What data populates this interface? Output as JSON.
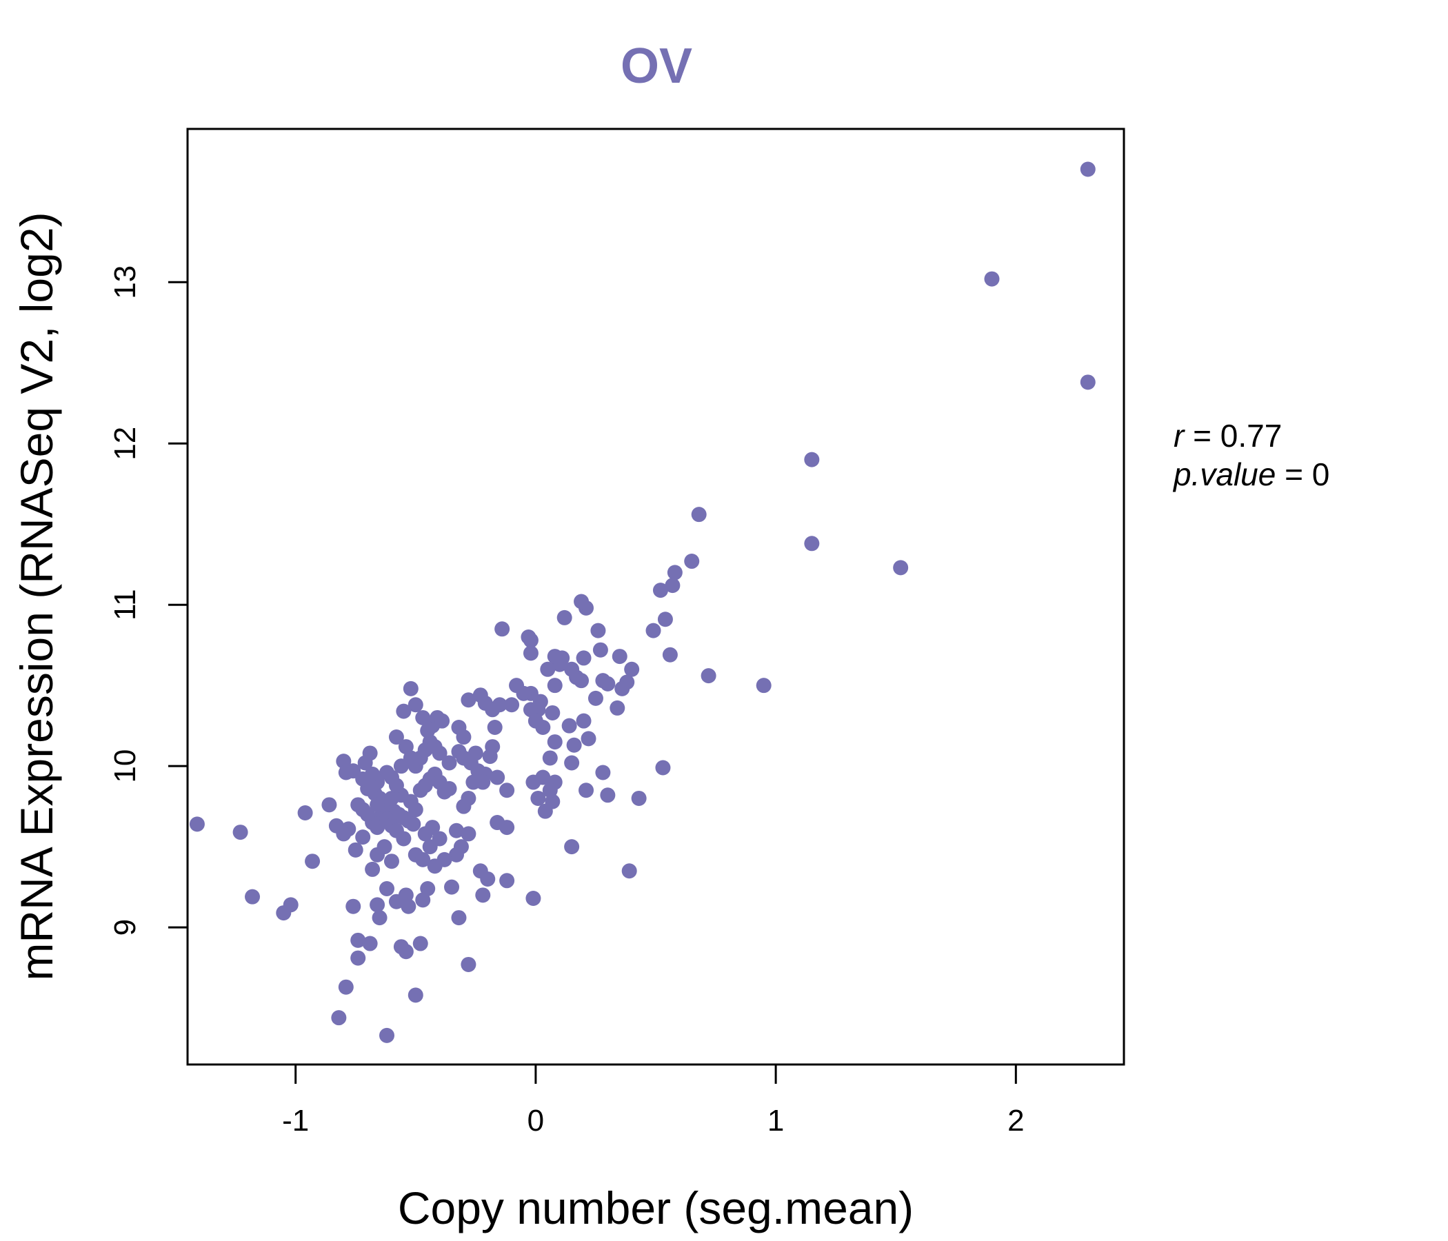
{
  "chart_data": {
    "type": "scatter",
    "title": "OV",
    "xlabel": "Copy number (seg.mean)",
    "ylabel": "mRNA Expression (RNASeq V2, log2)",
    "xlim": [
      -1.45,
      2.45
    ],
    "ylim": [
      8.15,
      13.95
    ],
    "xticks": [
      -1,
      0,
      1,
      2
    ],
    "yticks": [
      9,
      10,
      11,
      12,
      13
    ],
    "xtick_labels": [
      "-1",
      "0",
      "1",
      "2"
    ],
    "ytick_labels": [
      "9",
      "10",
      "11",
      "12",
      "13"
    ],
    "point_color": "#7570b3",
    "stats": {
      "r_label": "r",
      "r_value": "0.77",
      "p_label": "p.value",
      "p_value": "0"
    },
    "points": [
      [
        2.3,
        13.7
      ],
      [
        1.9,
        13.02
      ],
      [
        2.3,
        12.38
      ],
      [
        1.15,
        11.9
      ],
      [
        1.15,
        11.38
      ],
      [
        1.52,
        11.23
      ],
      [
        0.68,
        11.56
      ],
      [
        0.65,
        11.27
      ],
      [
        0.58,
        11.2
      ],
      [
        0.57,
        11.12
      ],
      [
        0.52,
        11.09
      ],
      [
        0.54,
        10.91
      ],
      [
        0.49,
        10.84
      ],
      [
        0.56,
        10.69
      ],
      [
        0.72,
        10.56
      ],
      [
        0.95,
        10.5
      ],
      [
        0.53,
        9.99
      ],
      [
        0.43,
        9.8
      ],
      [
        0.39,
        9.35
      ],
      [
        0.4,
        10.6
      ],
      [
        0.38,
        10.52
      ],
      [
        0.35,
        10.68
      ],
      [
        0.36,
        10.48
      ],
      [
        0.34,
        10.36
      ],
      [
        0.3,
        10.51
      ],
      [
        0.28,
        10.53
      ],
      [
        0.27,
        10.72
      ],
      [
        0.26,
        10.84
      ],
      [
        0.25,
        10.42
      ],
      [
        0.28,
        9.96
      ],
      [
        0.3,
        9.82
      ],
      [
        0.22,
        10.17
      ],
      [
        0.21,
        10.98
      ],
      [
        0.19,
        11.02
      ],
      [
        0.2,
        10.67
      ],
      [
        0.2,
        10.28
      ],
      [
        0.21,
        9.85
      ],
      [
        0.19,
        10.53
      ],
      [
        0.17,
        10.55
      ],
      [
        0.15,
        10.6
      ],
      [
        0.14,
        10.25
      ],
      [
        0.16,
        10.13
      ],
      [
        0.15,
        10.02
      ],
      [
        0.15,
        9.5
      ],
      [
        0.12,
        10.92
      ],
      [
        0.11,
        10.67
      ],
      [
        0.1,
        10.63
      ],
      [
        0.08,
        10.68
      ],
      [
        0.05,
        10.6
      ],
      [
        0.08,
        10.5
      ],
      [
        0.07,
        10.33
      ],
      [
        0.08,
        10.15
      ],
      [
        0.06,
        10.05
      ],
      [
        0.03,
        10.24
      ],
      [
        0.01,
        10.35
      ],
      [
        -0.02,
        10.78
      ],
      [
        -0.03,
        10.8
      ],
      [
        -0.02,
        10.7
      ],
      [
        -0.02,
        10.45
      ],
      [
        -0.02,
        10.35
      ],
      [
        0.0,
        10.28
      ],
      [
        0.02,
        10.4
      ],
      [
        -0.05,
        10.45
      ],
      [
        -0.08,
        10.5
      ],
      [
        -0.1,
        10.38
      ],
      [
        -0.14,
        10.85
      ],
      [
        -0.15,
        10.38
      ],
      [
        -0.18,
        10.35
      ],
      [
        -0.17,
        10.24
      ],
      [
        -0.18,
        10.12
      ],
      [
        -0.19,
        10.06
      ],
      [
        -0.21,
        10.39
      ],
      [
        -0.23,
        10.44
      ],
      [
        -0.25,
        10.08
      ],
      [
        -0.28,
        10.41
      ],
      [
        -0.3,
        10.18
      ],
      [
        -0.32,
        10.24
      ],
      [
        -0.32,
        10.09
      ],
      [
        -0.3,
        10.05
      ],
      [
        -0.27,
        10.02
      ],
      [
        -0.24,
        9.97
      ],
      [
        -0.21,
        9.95
      ],
      [
        -0.16,
        9.93
      ],
      [
        -0.12,
        9.85
      ],
      [
        -0.12,
        9.62
      ],
      [
        -0.16,
        9.65
      ],
      [
        -0.22,
        9.9
      ],
      [
        -0.26,
        9.9
      ],
      [
        -0.28,
        9.8
      ],
      [
        -0.3,
        9.75
      ],
      [
        -0.33,
        9.6
      ],
      [
        -0.31,
        9.5
      ],
      [
        -0.33,
        9.45
      ],
      [
        -0.28,
        9.58
      ],
      [
        -0.23,
        9.35
      ],
      [
        -0.2,
        9.3
      ],
      [
        -0.22,
        9.2
      ],
      [
        -0.12,
        9.29
      ],
      [
        -0.01,
        9.18
      ],
      [
        0.04,
        9.72
      ],
      [
        0.07,
        9.78
      ],
      [
        0.08,
        9.9
      ],
      [
        0.03,
        9.93
      ],
      [
        0.01,
        9.8
      ],
      [
        -0.01,
        9.9
      ],
      [
        0.06,
        9.85
      ],
      [
        -0.35,
        9.25
      ],
      [
        -0.32,
        9.06
      ],
      [
        -0.28,
        8.77
      ],
      [
        -0.38,
        9.42
      ],
      [
        -0.42,
        9.38
      ],
      [
        -0.45,
        9.24
      ],
      [
        -0.47,
        9.17
      ],
      [
        -0.48,
        8.9
      ],
      [
        -0.5,
        8.58
      ],
      [
        -0.54,
        8.85
      ],
      [
        -0.56,
        8.88
      ],
      [
        -0.62,
        8.33
      ],
      [
        -0.82,
        8.44
      ],
      [
        -0.79,
        8.63
      ],
      [
        -0.74,
        8.81
      ],
      [
        -0.74,
        8.92
      ],
      [
        -0.69,
        8.9
      ],
      [
        -0.65,
        9.06
      ],
      [
        -0.66,
        9.14
      ],
      [
        -0.76,
        9.13
      ],
      [
        -0.62,
        9.24
      ],
      [
        -0.58,
        9.16
      ],
      [
        -0.54,
        9.2
      ],
      [
        -0.53,
        9.13
      ],
      [
        -0.6,
        9.41
      ],
      [
        -0.63,
        9.5
      ],
      [
        -0.66,
        9.45
      ],
      [
        -0.68,
        9.36
      ],
      [
        -0.72,
        9.56
      ],
      [
        -0.75,
        9.48
      ],
      [
        -0.78,
        9.61
      ],
      [
        -0.8,
        9.58
      ],
      [
        -0.83,
        9.63
      ],
      [
        -0.86,
        9.76
      ],
      [
        -0.96,
        9.71
      ],
      [
        -0.93,
        9.41
      ],
      [
        -1.02,
        9.14
      ],
      [
        -1.05,
        9.09
      ],
      [
        -1.18,
        9.19
      ],
      [
        -1.23,
        9.59
      ],
      [
        -1.41,
        9.64
      ],
      [
        -0.8,
        10.03
      ],
      [
        -0.69,
        10.08
      ],
      [
        -0.71,
        10.02
      ],
      [
        -0.76,
        9.97
      ],
      [
        -0.79,
        9.96
      ],
      [
        -0.7,
        9.86
      ],
      [
        -0.67,
        9.83
      ],
      [
        -0.65,
        9.8
      ],
      [
        -0.63,
        9.77
      ],
      [
        -0.61,
        9.74
      ],
      [
        -0.59,
        9.72
      ],
      [
        -0.57,
        9.7
      ],
      [
        -0.55,
        9.68
      ],
      [
        -0.53,
        9.66
      ],
      [
        -0.51,
        9.64
      ],
      [
        -0.64,
        9.7
      ],
      [
        -0.62,
        9.67
      ],
      [
        -0.6,
        9.63
      ],
      [
        -0.58,
        9.6
      ],
      [
        -0.66,
        9.62
      ],
      [
        -0.68,
        9.65
      ],
      [
        -0.7,
        9.7
      ],
      [
        -0.72,
        9.73
      ],
      [
        -0.74,
        9.76
      ],
      [
        -0.66,
        9.76
      ],
      [
        -0.6,
        9.8
      ],
      [
        -0.56,
        9.82
      ],
      [
        -0.52,
        9.78
      ],
      [
        -0.5,
        9.73
      ],
      [
        -0.48,
        9.85
      ],
      [
        -0.46,
        9.88
      ],
      [
        -0.44,
        9.92
      ],
      [
        -0.42,
        9.95
      ],
      [
        -0.4,
        9.9
      ],
      [
        -0.38,
        9.84
      ],
      [
        -0.36,
        9.86
      ],
      [
        -0.55,
        9.55
      ],
      [
        -0.5,
        9.45
      ],
      [
        -0.47,
        9.42
      ],
      [
        -0.44,
        9.5
      ],
      [
        -0.4,
        9.55
      ],
      [
        -0.43,
        9.62
      ],
      [
        -0.46,
        9.58
      ],
      [
        -0.5,
        10.0
      ],
      [
        -0.48,
        10.05
      ],
      [
        -0.46,
        10.1
      ],
      [
        -0.44,
        10.15
      ],
      [
        -0.42,
        10.12
      ],
      [
        -0.4,
        10.08
      ],
      [
        -0.45,
        10.22
      ],
      [
        -0.43,
        10.25
      ],
      [
        -0.41,
        10.3
      ],
      [
        -0.39,
        10.28
      ],
      [
        -0.47,
        10.3
      ],
      [
        -0.5,
        10.38
      ],
      [
        -0.52,
        10.48
      ],
      [
        -0.55,
        10.34
      ],
      [
        -0.58,
        10.18
      ],
      [
        -0.54,
        10.12
      ],
      [
        -0.52,
        10.05
      ],
      [
        -0.56,
        10.0
      ],
      [
        -0.6,
        9.93
      ],
      [
        -0.62,
        9.96
      ],
      [
        -0.66,
        9.9
      ],
      [
        -0.68,
        9.95
      ],
      [
        -0.72,
        9.92
      ],
      [
        -0.58,
        9.88
      ],
      [
        -0.36,
        10.02
      ]
    ]
  }
}
